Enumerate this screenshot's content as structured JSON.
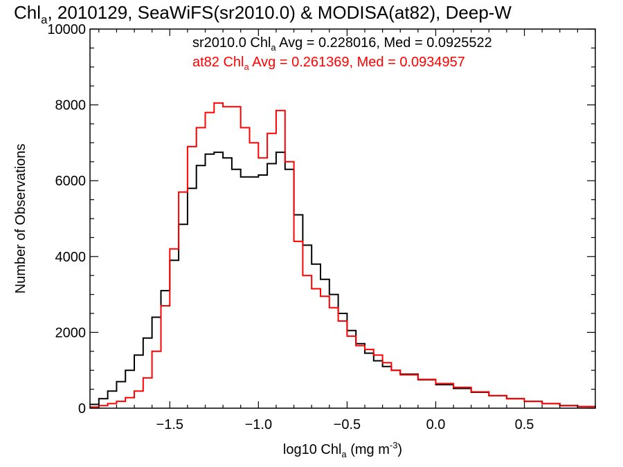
{
  "chart_data": {
    "type": "line",
    "title": {
      "main": "Chl",
      "sub": "a",
      "rest": ", 2010129, SeaWiFS(sr2010.0) & MODISA(at82), Deep-W"
    },
    "xlabel": {
      "main": "log10 Chl",
      "sub": "a",
      "rest": " (mg m",
      "sup": "-3",
      "end": ")"
    },
    "ylabel": "Number of Observations",
    "xlim": [
      -1.95,
      0.9
    ],
    "ylim": [
      0,
      10000
    ],
    "xticks": [
      -1.5,
      -1.0,
      -0.5,
      0.0,
      0.5
    ],
    "xtick_labels": [
      "−1.5",
      "−1.0",
      "−0.5",
      "0.0",
      "0.5"
    ],
    "yticks": [
      0,
      2000,
      4000,
      6000,
      8000,
      10000
    ],
    "ytick_labels": [
      "0",
      "2000",
      "4000",
      "6000",
      "8000",
      "10000"
    ],
    "grid": false,
    "legend_position": "top-right",
    "series": [
      {
        "name": "sr2010.0",
        "legend": {
          "prefix": "sr2010.0 Chl",
          "sub": "a",
          "suffix": " Avg = 0.228016, Med = 0.0925522"
        },
        "color": "#000000",
        "x": [
          -1.95,
          -1.9,
          -1.85,
          -1.8,
          -1.75,
          -1.7,
          -1.65,
          -1.6,
          -1.55,
          -1.5,
          -1.45,
          -1.4,
          -1.35,
          -1.3,
          -1.25,
          -1.2,
          -1.15,
          -1.1,
          -1.05,
          -1.0,
          -0.95,
          -0.9,
          -0.85,
          -0.8,
          -0.75,
          -0.7,
          -0.65,
          -0.6,
          -0.55,
          -0.5,
          -0.45,
          -0.4,
          -0.35,
          -0.3,
          -0.25,
          -0.2,
          -0.1,
          0.0,
          0.1,
          0.2,
          0.3,
          0.4,
          0.5,
          0.6,
          0.7,
          0.8,
          0.9
        ],
        "y": [
          100,
          250,
          450,
          700,
          1000,
          1400,
          1850,
          2400,
          3100,
          3900,
          4850,
          5800,
          6400,
          6700,
          6750,
          6600,
          6300,
          6100,
          6100,
          6150,
          6450,
          6750,
          6300,
          5100,
          4300,
          3800,
          3400,
          3000,
          2500,
          2050,
          1700,
          1450,
          1250,
          1100,
          1000,
          900,
          750,
          620,
          520,
          420,
          330,
          250,
          180,
          120,
          70,
          40,
          20
        ]
      },
      {
        "name": "at82",
        "legend": {
          "prefix": "at82 Chl",
          "sub": "a",
          "suffix": " Avg = 0.261369, Med = 0.0934957"
        },
        "color": "#ff0000",
        "x": [
          -1.95,
          -1.9,
          -1.85,
          -1.8,
          -1.75,
          -1.7,
          -1.65,
          -1.6,
          -1.55,
          -1.5,
          -1.45,
          -1.4,
          -1.35,
          -1.3,
          -1.25,
          -1.2,
          -1.15,
          -1.1,
          -1.05,
          -1.0,
          -0.95,
          -0.9,
          -0.85,
          -0.8,
          -0.75,
          -0.7,
          -0.65,
          -0.6,
          -0.55,
          -0.5,
          -0.45,
          -0.4,
          -0.35,
          -0.3,
          -0.25,
          -0.2,
          -0.1,
          0.0,
          0.1,
          0.2,
          0.3,
          0.4,
          0.5,
          0.6,
          0.7,
          0.8,
          0.9
        ],
        "y": [
          30,
          70,
          120,
          180,
          280,
          450,
          800,
          1500,
          2700,
          4200,
          5700,
          6900,
          7400,
          7800,
          8050,
          7950,
          7950,
          7400,
          7000,
          6600,
          7250,
          7850,
          6500,
          4400,
          3500,
          3150,
          2950,
          2650,
          2300,
          1900,
          1650,
          1550,
          1400,
          1200,
          1000,
          880,
          760,
          650,
          550,
          430,
          330,
          250,
          180,
          120,
          70,
          40,
          20
        ]
      }
    ]
  }
}
